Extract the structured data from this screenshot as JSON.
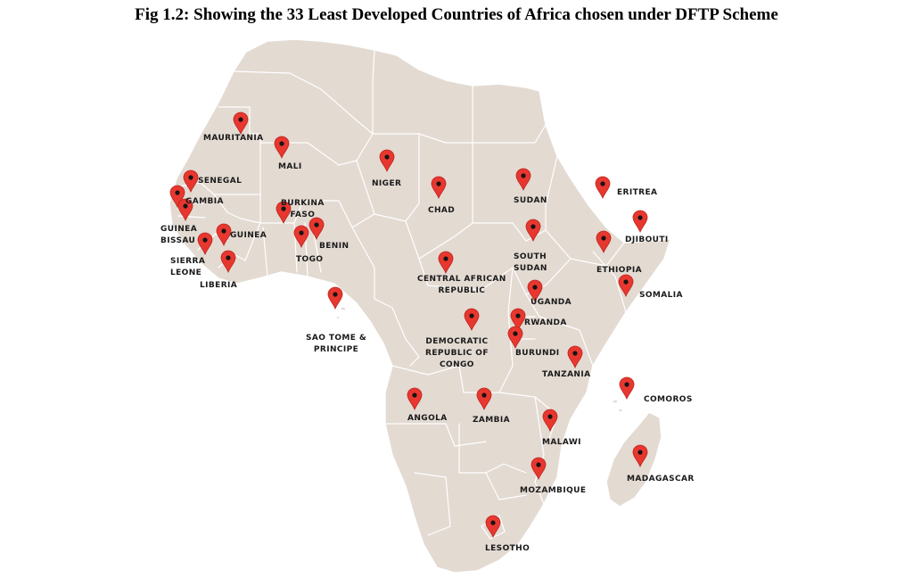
{
  "title": "Fig 1.2: Showing the 33 Least Developed Countries of Africa chosen under DFTP Scheme",
  "colors": {
    "land": "#e3dad2",
    "border": "#ffffff",
    "pin": "#e8372f",
    "pin_dot": "#141414",
    "label": "#1a1a1a"
  },
  "marker_icon": "map-pin-icon",
  "countries": [
    {
      "id": "mauritania",
      "label": "MAURITANIA"
    },
    {
      "id": "mali",
      "label": "MALI"
    },
    {
      "id": "senegal",
      "label": "SENEGAL"
    },
    {
      "id": "gambia",
      "label": "GAMBIA"
    },
    {
      "id": "guinea-bissau",
      "label": "GUINEA\nBISSAU"
    },
    {
      "id": "guinea",
      "label": "GUINEA"
    },
    {
      "id": "sierra-leone",
      "label": "SIERRA\nLEONE"
    },
    {
      "id": "liberia",
      "label": "LIBERIA"
    },
    {
      "id": "burkina-faso",
      "label": "BURKINA\nFASO"
    },
    {
      "id": "togo",
      "label": "TOGO"
    },
    {
      "id": "benin",
      "label": "BENIN"
    },
    {
      "id": "niger",
      "label": "NIGER"
    },
    {
      "id": "chad",
      "label": "CHAD"
    },
    {
      "id": "sao-tome",
      "label": "SAO TOME &\nPRINCIPE"
    },
    {
      "id": "car",
      "label": "CENTRAL AFRICAN\nREPUBLIC"
    },
    {
      "id": "drc",
      "label": "DEMOCRATIC\nREPUBLIC OF\nCONGO"
    },
    {
      "id": "sudan",
      "label": "SUDAN"
    },
    {
      "id": "south-sudan",
      "label": "SOUTH\nSUDAN"
    },
    {
      "id": "eritrea",
      "label": "ERITREA"
    },
    {
      "id": "djibouti",
      "label": "DJIBOUTI"
    },
    {
      "id": "ethiopia",
      "label": "ETHIOPIA"
    },
    {
      "id": "somalia",
      "label": "SOMALIA"
    },
    {
      "id": "uganda",
      "label": "UGANDA"
    },
    {
      "id": "rwanda",
      "label": "RWANDA"
    },
    {
      "id": "burundi",
      "label": "BURUNDI"
    },
    {
      "id": "tanzania",
      "label": "TANZANIA"
    },
    {
      "id": "comoros",
      "label": "COMOROS"
    },
    {
      "id": "angola",
      "label": "ANGOLA"
    },
    {
      "id": "zambia",
      "label": "ZAMBIA"
    },
    {
      "id": "malawi",
      "label": "MALAWI"
    },
    {
      "id": "mozambique",
      "label": "MOZAMBIQUE"
    },
    {
      "id": "madagascar",
      "label": "MADAGASCAR"
    },
    {
      "id": "lesotho",
      "label": "LESOTHO"
    }
  ]
}
